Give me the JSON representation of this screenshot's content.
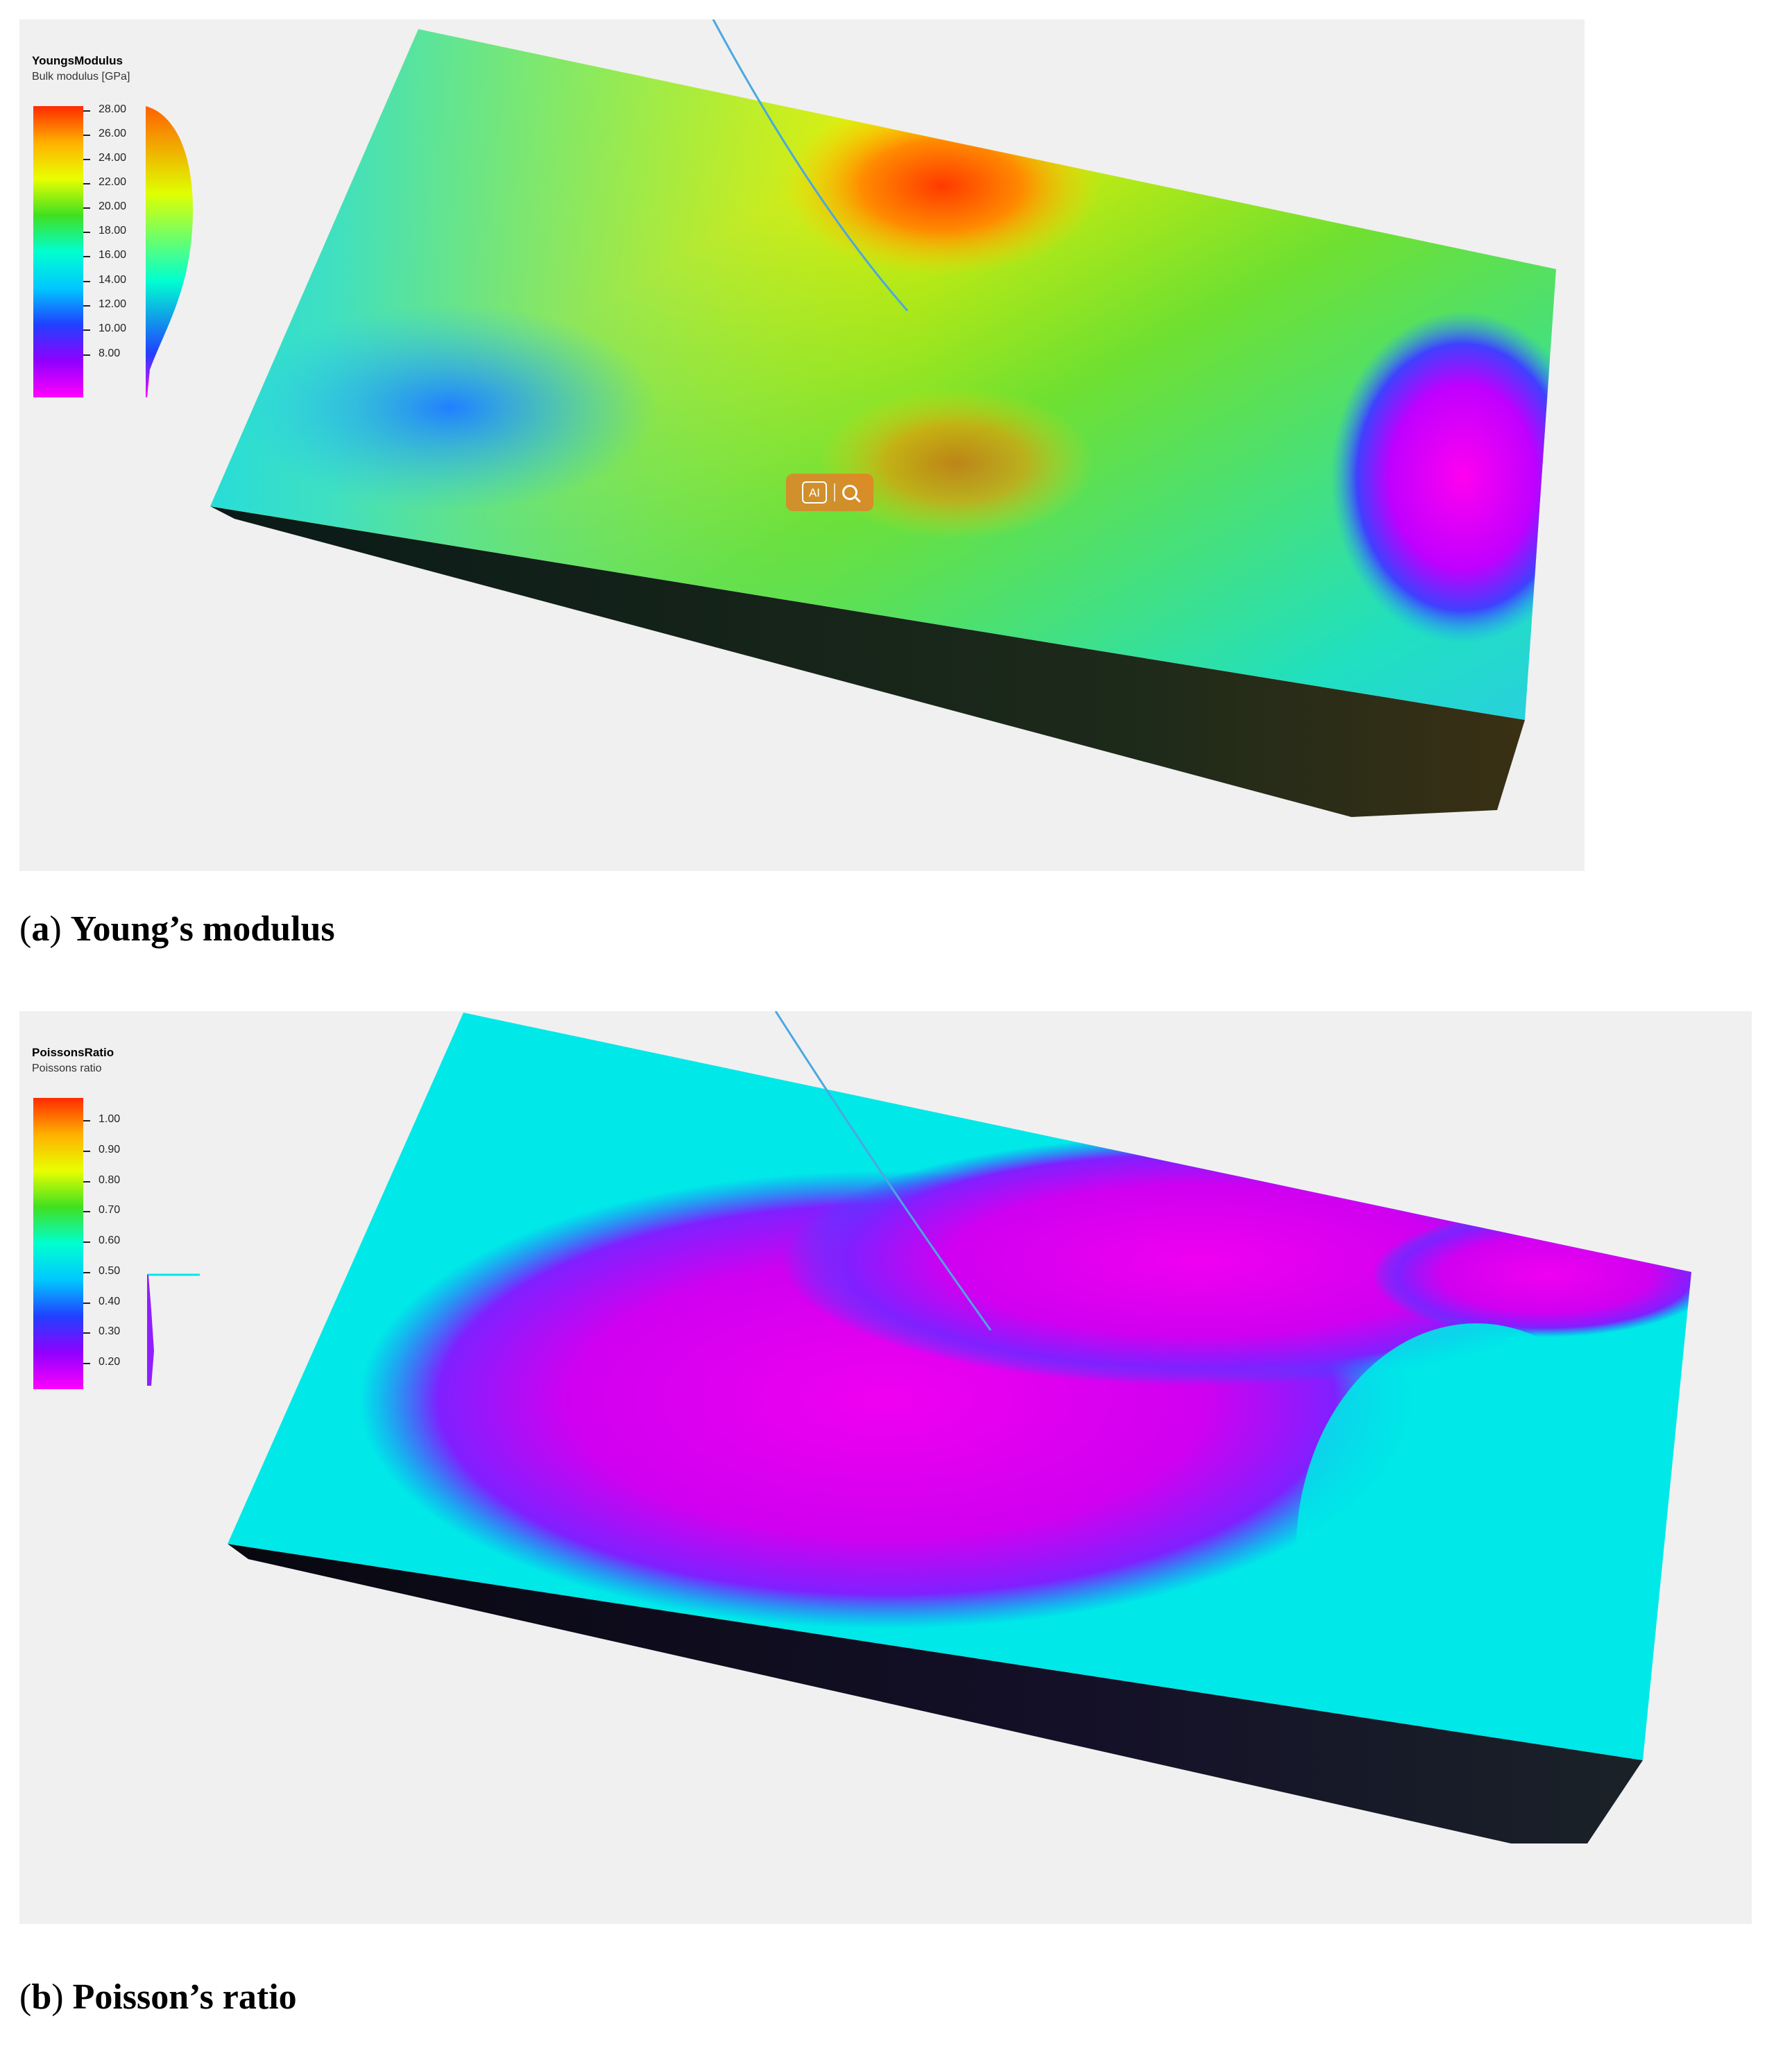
{
  "panels": [
    {
      "legend_title": "YoungsModulus",
      "legend_subtitle": "Bulk modulus [GPa]",
      "ticks": [
        "28.00",
        "26.00",
        "24.00",
        "22.00",
        "20.00",
        "18.00",
        "16.00",
        "14.00",
        "12.00",
        "10.00",
        "8.00"
      ],
      "caption_letter": "a",
      "caption_text": "Young’s modulus"
    },
    {
      "legend_title": "PoissonsRatio",
      "legend_subtitle": "Poissons ratio",
      "ticks": [
        "1.00",
        "0.90",
        "0.80",
        "0.70",
        "0.60",
        "0.50",
        "0.40",
        "0.30",
        "0.20"
      ],
      "caption_letter": "b",
      "caption_text": "Poisson’s ratio"
    }
  ],
  "colors": {
    "viewport_background": "#f0f0f0",
    "colormap": [
      "#ff2a00",
      "#ffb000",
      "#e8ff00",
      "#40e020",
      "#00ffd0",
      "#00c8ff",
      "#2040ff",
      "#9000ff",
      "#ff00ff"
    ],
    "well_trajectory": "#4aa8e0",
    "ai_widget": "#eb7828"
  },
  "toolbar": {
    "ai_label": "AI",
    "search_icon": "magnifier-icon"
  }
}
